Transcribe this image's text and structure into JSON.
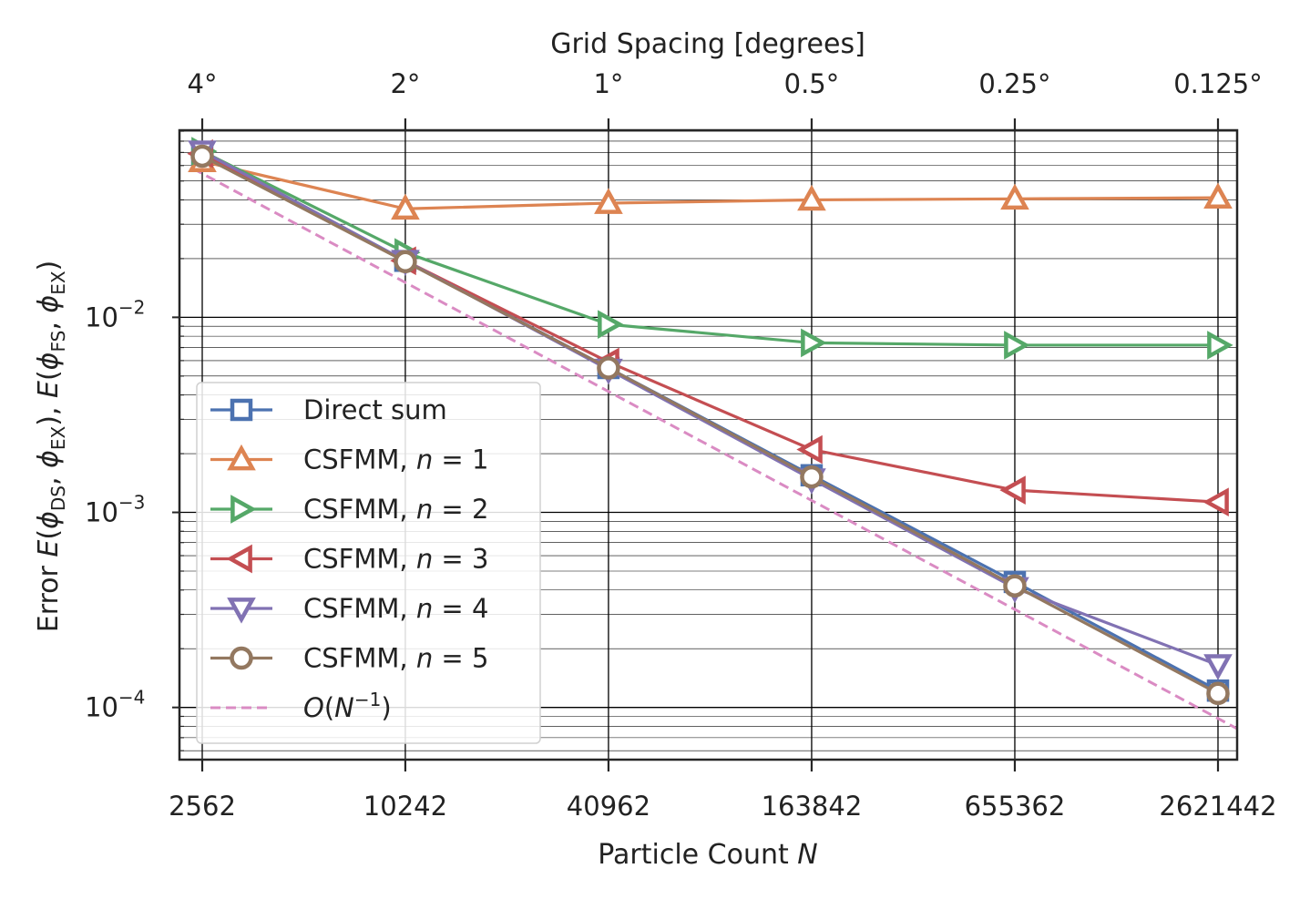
{
  "chart_data": {
    "type": "line",
    "x_scale": "log",
    "y_scale": "log",
    "x": [
      2562,
      10242,
      40962,
      163842,
      655362,
      2621442
    ],
    "x_tick_labels": [
      "2562",
      "10242",
      "40962",
      "163842",
      "655362",
      "2621442"
    ],
    "top_x_tick_labels": [
      "4°",
      "2°",
      "1°",
      "0.5°",
      "0.25°",
      "0.125°"
    ],
    "xlabel": "Particle Count N",
    "xlabel_prefix": "Particle Count ",
    "xlabel_var": "N",
    "top_xlabel": "Grid Spacing [degrees]",
    "ylabel": "Error E(φDS, φEX), E(φFS, φEX)",
    "y_tick_labels": [
      {
        "value": 0.01,
        "base": "10",
        "exp": "−2"
      },
      {
        "value": 0.001,
        "base": "10",
        "exp": "−3"
      },
      {
        "value": 0.0001,
        "base": "10",
        "exp": "−4"
      }
    ],
    "ylim": [
      5.4e-05,
      0.091
    ],
    "grid": true,
    "legend_position": "lower-left",
    "series": [
      {
        "name": "Direct sum",
        "label_main": "Direct sum",
        "label_var": "",
        "label_val": "",
        "color": "#4c72b0",
        "marker": "square",
        "values": [
          0.068,
          0.0195,
          0.0055,
          0.00155,
          0.00044,
          0.000122
        ]
      },
      {
        "name": "CSFMM, n = 1",
        "label_main": "CSFMM, ",
        "label_var": "n",
        "label_val": " = 1",
        "color": "#dd8452",
        "marker": "triangle-up",
        "values": [
          0.063,
          0.036,
          0.0385,
          0.04,
          0.0405,
          0.041
        ]
      },
      {
        "name": "CSFMM, n = 2",
        "label_main": "CSFMM, ",
        "label_var": "n",
        "label_val": " = 2",
        "color": "#55a868",
        "marker": "triangle-right",
        "values": [
          0.071,
          0.0215,
          0.0092,
          0.0074,
          0.0072,
          0.0072
        ]
      },
      {
        "name": "CSFMM, n = 3",
        "label_main": "CSFMM, ",
        "label_var": "n",
        "label_val": " = 3",
        "color": "#c44e52",
        "marker": "triangle-left",
        "values": [
          0.069,
          0.0195,
          0.0059,
          0.0021,
          0.0013,
          0.00113
        ]
      },
      {
        "name": "CSFMM, n = 4",
        "label_main": "CSFMM, ",
        "label_var": "n",
        "label_val": " = 4",
        "color": "#8172b3",
        "marker": "triangle-down",
        "values": [
          0.071,
          0.0195,
          0.0054,
          0.00148,
          0.00041,
          0.000165
        ]
      },
      {
        "name": "CSFMM, n = 5",
        "label_main": "CSFMM, ",
        "label_var": "n",
        "label_val": " = 5",
        "color": "#937860",
        "marker": "circle",
        "values": [
          0.067,
          0.0193,
          0.0055,
          0.00152,
          0.00042,
          0.000118
        ]
      }
    ],
    "reference_line": {
      "name": "O(N^-1)",
      "label_pre": "O(",
      "label_var": "N",
      "label_exp": "−1",
      "label_post": ")",
      "color": "#da8bc3",
      "style": "dashed",
      "x": [
        2400,
        3000000
      ],
      "values": [
        0.058,
        7.75e-05
      ]
    }
  }
}
